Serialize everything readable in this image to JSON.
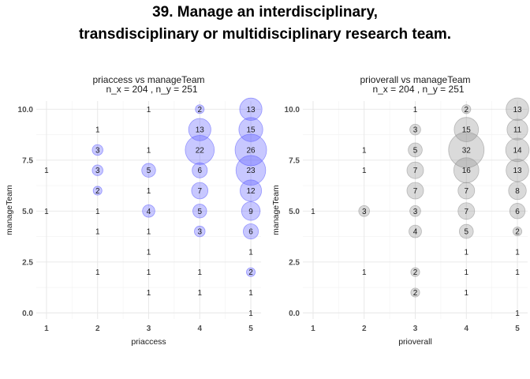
{
  "title_line1": "39. Manage an interdisciplinary,",
  "title_line2": "transdisciplinary or multidisciplinary research team.",
  "chart_data": [
    {
      "type": "scatter",
      "title": "priaccess vs manageTeam",
      "subtitle": "n_x = 204 , n_y = 251",
      "xlabel": "priaccess",
      "ylabel": "manageTeam",
      "x_ticks": [
        1,
        2,
        3,
        4,
        5
      ],
      "y_ticks": [
        0.0,
        2.5,
        5.0,
        7.5,
        10.0
      ],
      "y_tick_labels": [
        "0.0",
        "2.5",
        "5.0",
        "7.5",
        "10.0"
      ],
      "xlim": [
        0.8,
        5.2
      ],
      "ylim": [
        -0.3,
        10.4
      ],
      "grid": true,
      "color": "#5555ff",
      "points": [
        {
          "x": 1,
          "y": 7,
          "n": 1
        },
        {
          "x": 1,
          "y": 5,
          "n": 1
        },
        {
          "x": 2,
          "y": 9,
          "n": 1
        },
        {
          "x": 2,
          "y": 8,
          "n": 3
        },
        {
          "x": 2,
          "y": 7,
          "n": 3
        },
        {
          "x": 2,
          "y": 6,
          "n": 2
        },
        {
          "x": 2,
          "y": 5,
          "n": 1
        },
        {
          "x": 2,
          "y": 4,
          "n": 1
        },
        {
          "x": 2,
          "y": 2,
          "n": 1
        },
        {
          "x": 3,
          "y": 10,
          "n": 1
        },
        {
          "x": 3,
          "y": 8,
          "n": 1
        },
        {
          "x": 3,
          "y": 7,
          "n": 5
        },
        {
          "x": 3,
          "y": 6,
          "n": 1
        },
        {
          "x": 3,
          "y": 5,
          "n": 4
        },
        {
          "x": 3,
          "y": 4,
          "n": 1
        },
        {
          "x": 3,
          "y": 3,
          "n": 1
        },
        {
          "x": 3,
          "y": 2,
          "n": 1
        },
        {
          "x": 3,
          "y": 1,
          "n": 1
        },
        {
          "x": 4,
          "y": 10,
          "n": 2
        },
        {
          "x": 4,
          "y": 9,
          "n": 13
        },
        {
          "x": 4,
          "y": 8,
          "n": 22
        },
        {
          "x": 4,
          "y": 7,
          "n": 6
        },
        {
          "x": 4,
          "y": 6,
          "n": 7
        },
        {
          "x": 4,
          "y": 5,
          "n": 5
        },
        {
          "x": 4,
          "y": 4,
          "n": 3
        },
        {
          "x": 4,
          "y": 2,
          "n": 1
        },
        {
          "x": 4,
          "y": 1,
          "n": 1
        },
        {
          "x": 5,
          "y": 10,
          "n": 13
        },
        {
          "x": 5,
          "y": 9,
          "n": 15
        },
        {
          "x": 5,
          "y": 8,
          "n": 26
        },
        {
          "x": 5,
          "y": 7,
          "n": 23
        },
        {
          "x": 5,
          "y": 6,
          "n": 12
        },
        {
          "x": 5,
          "y": 5,
          "n": 9
        },
        {
          "x": 5,
          "y": 4,
          "n": 6
        },
        {
          "x": 5,
          "y": 3,
          "n": 1
        },
        {
          "x": 5,
          "y": 2,
          "n": 2
        },
        {
          "x": 5,
          "y": 1,
          "n": 1
        },
        {
          "x": 5,
          "y": 0,
          "n": 1
        }
      ]
    },
    {
      "type": "scatter",
      "title": "prioverall vs manageTeam",
      "subtitle": "n_x = 204 , n_y = 251",
      "xlabel": "prioverall",
      "ylabel": "manageTeam",
      "x_ticks": [
        1,
        2,
        3,
        4,
        5
      ],
      "y_ticks": [
        0.0,
        2.5,
        5.0,
        7.5,
        10.0
      ],
      "y_tick_labels": [
        "0.0",
        "2.5",
        "5.0",
        "7.5",
        "10.0"
      ],
      "xlim": [
        0.8,
        5.2
      ],
      "ylim": [
        -0.3,
        10.4
      ],
      "grid": true,
      "color": "#8c8c8c",
      "points": [
        {
          "x": 1,
          "y": 5,
          "n": 1
        },
        {
          "x": 2,
          "y": 8,
          "n": 1
        },
        {
          "x": 2,
          "y": 7,
          "n": 1
        },
        {
          "x": 2,
          "y": 5,
          "n": 3
        },
        {
          "x": 2,
          "y": 2,
          "n": 1
        },
        {
          "x": 3,
          "y": 10,
          "n": 1
        },
        {
          "x": 3,
          "y": 9,
          "n": 3
        },
        {
          "x": 3,
          "y": 8,
          "n": 5
        },
        {
          "x": 3,
          "y": 7,
          "n": 7
        },
        {
          "x": 3,
          "y": 6,
          "n": 7
        },
        {
          "x": 3,
          "y": 5,
          "n": 3
        },
        {
          "x": 3,
          "y": 4,
          "n": 4
        },
        {
          "x": 3,
          "y": 2,
          "n": 2
        },
        {
          "x": 3,
          "y": 1,
          "n": 2
        },
        {
          "x": 4,
          "y": 10,
          "n": 2
        },
        {
          "x": 4,
          "y": 9,
          "n": 15
        },
        {
          "x": 4,
          "y": 8,
          "n": 32
        },
        {
          "x": 4,
          "y": 7,
          "n": 16
        },
        {
          "x": 4,
          "y": 6,
          "n": 7
        },
        {
          "x": 4,
          "y": 5,
          "n": 7
        },
        {
          "x": 4,
          "y": 4,
          "n": 5
        },
        {
          "x": 4,
          "y": 3,
          "n": 1
        },
        {
          "x": 4,
          "y": 2,
          "n": 1
        },
        {
          "x": 4,
          "y": 1,
          "n": 1
        },
        {
          "x": 5,
          "y": 10,
          "n": 13
        },
        {
          "x": 5,
          "y": 9,
          "n": 11
        },
        {
          "x": 5,
          "y": 8,
          "n": 14
        },
        {
          "x": 5,
          "y": 7,
          "n": 13
        },
        {
          "x": 5,
          "y": 6,
          "n": 8
        },
        {
          "x": 5,
          "y": 5,
          "n": 6
        },
        {
          "x": 5,
          "y": 4,
          "n": 2
        },
        {
          "x": 5,
          "y": 3,
          "n": 1
        },
        {
          "x": 5,
          "y": 2,
          "n": 1
        },
        {
          "x": 5,
          "y": 0,
          "n": 1
        }
      ]
    }
  ]
}
